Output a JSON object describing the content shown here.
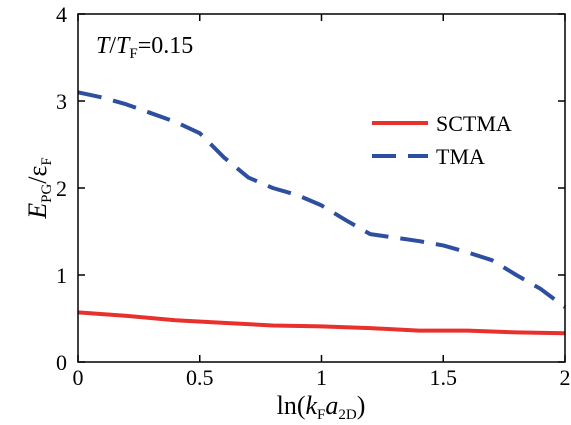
{
  "chart_data": {
    "type": "line",
    "xlabel": {
      "pre": "ln(",
      "k": "k",
      "k_sub": "F",
      "a": "a",
      "a_sub": "2D",
      "post": ")"
    },
    "ylabel": {
      "E": "E",
      "E_sub": "PG",
      "slash": "/",
      "eps": "ε",
      "eps_sub": "F"
    },
    "annotation": {
      "T": "T",
      "slash": "/",
      "T2": "T",
      "T2_sub": "F",
      "value": "=0.15"
    },
    "xlim": [
      0,
      2
    ],
    "ylim": [
      0,
      4
    ],
    "xticks": [
      0,
      0.5,
      1,
      1.5,
      2
    ],
    "xtick_labels": [
      "0",
      "0.5",
      "1",
      "1.5",
      "2"
    ],
    "yticks": [
      0,
      1,
      2,
      3,
      4
    ],
    "ytick_labels": [
      "0",
      "1",
      "2",
      "3",
      "4"
    ],
    "grid": false,
    "legend_position": "top-right",
    "series": [
      {
        "name": "SCTMA",
        "style": "solid",
        "color": "#e8302c",
        "x": [
          0,
          0.2,
          0.4,
          0.6,
          0.8,
          1.0,
          1.2,
          1.4,
          1.6,
          1.8,
          2.0
        ],
        "y": [
          0.57,
          0.53,
          0.48,
          0.45,
          0.42,
          0.41,
          0.39,
          0.36,
          0.36,
          0.34,
          0.33
        ]
      },
      {
        "name": "TMA",
        "style": "dashed",
        "color": "#2e4fa0",
        "x": [
          0,
          0.1,
          0.2,
          0.3,
          0.4,
          0.5,
          0.6,
          0.7,
          0.8,
          0.9,
          1.0,
          1.1,
          1.2,
          1.3,
          1.4,
          1.5,
          1.6,
          1.7,
          1.8,
          1.9,
          2.0
        ],
        "y": [
          3.1,
          3.04,
          2.96,
          2.86,
          2.76,
          2.63,
          2.35,
          2.12,
          2.0,
          1.92,
          1.8,
          1.63,
          1.47,
          1.43,
          1.39,
          1.34,
          1.26,
          1.17,
          1.0,
          0.84,
          0.63
        ]
      }
    ]
  }
}
